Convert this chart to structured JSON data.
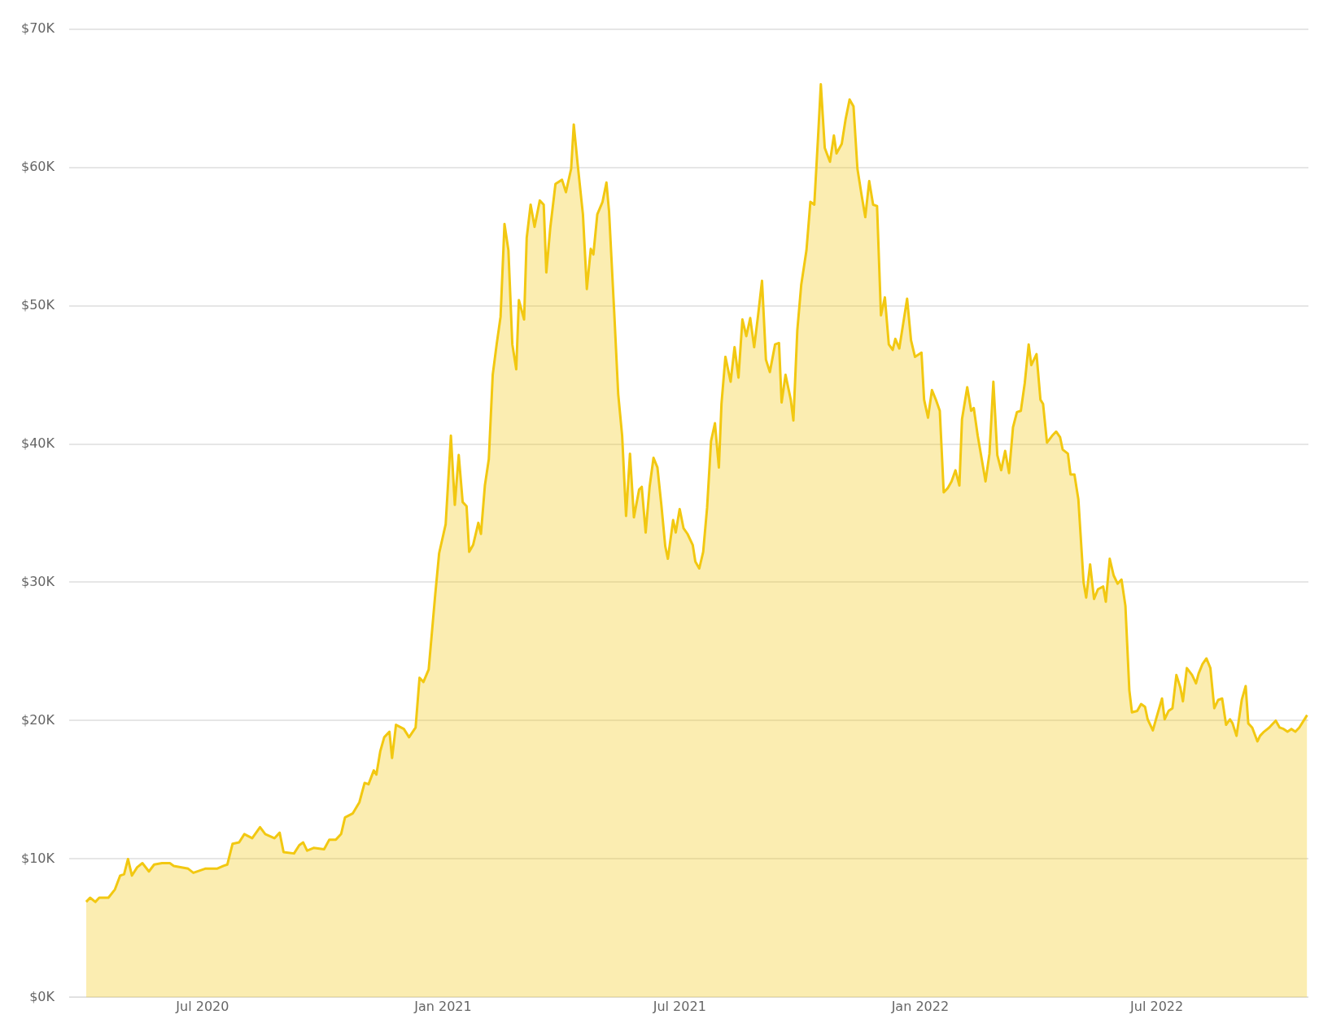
{
  "chart_data": {
    "type": "area",
    "x": [
      "2020-04-03",
      "2020-04-06",
      "2020-04-10",
      "2020-04-13",
      "2020-04-20",
      "2020-04-25",
      "2020-04-29",
      "2020-05-02",
      "2020-05-05",
      "2020-05-08",
      "2020-05-12",
      "2020-05-16",
      "2020-05-21",
      "2020-05-25",
      "2020-05-31",
      "2020-06-06",
      "2020-06-09",
      "2020-06-20",
      "2020-06-24",
      "2020-07-03",
      "2020-07-12",
      "2020-07-17",
      "2020-07-20",
      "2020-07-24",
      "2020-07-29",
      "2020-08-02",
      "2020-08-08",
      "2020-08-14",
      "2020-08-18",
      "2020-08-25",
      "2020-08-29",
      "2020-09-01",
      "2020-09-09",
      "2020-09-13",
      "2020-09-16",
      "2020-09-19",
      "2020-09-24",
      "2020-10-02",
      "2020-10-06",
      "2020-10-11",
      "2020-10-15",
      "2020-10-18",
      "2020-10-24",
      "2020-10-29",
      "2020-11-02",
      "2020-11-05",
      "2020-11-09",
      "2020-11-11",
      "2020-11-14",
      "2020-11-17",
      "2020-11-21",
      "2020-11-23",
      "2020-11-26",
      "2020-12-02",
      "2020-12-06",
      "2020-12-11",
      "2020-12-14",
      "2020-12-17",
      "2020-12-21",
      "2020-12-26",
      "2020-12-29",
      "2021-01-03",
      "2021-01-07",
      "2021-01-10",
      "2021-01-13",
      "2021-01-16",
      "2021-01-19",
      "2021-01-21",
      "2021-01-24",
      "2021-01-28",
      "2021-01-30",
      "2021-02-02",
      "2021-02-05",
      "2021-02-08",
      "2021-02-11",
      "2021-02-14",
      "2021-02-17",
      "2021-02-20",
      "2021-02-23",
      "2021-02-26",
      "2021-02-28",
      "2021-03-04",
      "2021-03-06",
      "2021-03-09",
      "2021-03-12",
      "2021-03-16",
      "2021-03-19",
      "2021-03-21",
      "2021-03-24",
      "2021-03-28",
      "2021-04-02",
      "2021-04-05",
      "2021-04-09",
      "2021-04-11",
      "2021-04-14",
      "2021-04-18",
      "2021-04-21",
      "2021-04-24",
      "2021-04-26",
      "2021-04-29",
      "2021-05-03",
      "2021-05-06",
      "2021-05-08",
      "2021-05-12",
      "2021-05-15",
      "2021-05-18",
      "2021-05-21",
      "2021-05-24",
      "2021-05-27",
      "2021-05-31",
      "2021-06-02",
      "2021-06-05",
      "2021-06-08",
      "2021-06-11",
      "2021-06-14",
      "2021-06-17",
      "2021-06-20",
      "2021-06-22",
      "2021-06-26",
      "2021-06-28",
      "2021-07-01",
      "2021-07-04",
      "2021-07-07",
      "2021-07-11",
      "2021-07-13",
      "2021-07-16",
      "2021-07-19",
      "2021-07-22",
      "2021-07-25",
      "2021-07-28",
      "2021-07-31",
      "2021-08-02",
      "2021-08-05",
      "2021-08-09",
      "2021-08-12",
      "2021-08-15",
      "2021-08-18",
      "2021-08-21",
      "2021-08-24",
      "2021-08-27",
      "2021-08-30",
      "2021-09-02",
      "2021-09-05",
      "2021-09-08",
      "2021-09-12",
      "2021-09-15",
      "2021-09-17",
      "2021-09-20",
      "2021-09-24",
      "2021-09-26",
      "2021-09-29",
      "2021-10-02",
      "2021-10-06",
      "2021-10-09",
      "2021-10-12",
      "2021-10-15",
      "2021-10-17",
      "2021-10-20",
      "2021-10-24",
      "2021-10-27",
      "2021-10-29",
      "2021-11-02",
      "2021-11-05",
      "2021-11-08",
      "2021-11-11",
      "2021-11-14",
      "2021-11-17",
      "2021-11-20",
      "2021-11-23",
      "2021-11-26",
      "2021-11-29",
      "2021-12-02",
      "2021-12-05",
      "2021-12-08",
      "2021-12-11",
      "2021-12-13",
      "2021-12-16",
      "2021-12-19",
      "2021-12-22",
      "2021-12-25",
      "2021-12-28",
      "2022-01-02",
      "2022-01-04",
      "2022-01-07",
      "2022-01-10",
      "2022-01-13",
      "2022-01-16",
      "2022-01-19",
      "2022-01-22",
      "2022-01-25",
      "2022-01-28",
      "2022-01-31",
      "2022-02-02",
      "2022-02-06",
      "2022-02-09",
      "2022-02-11",
      "2022-02-14",
      "2022-02-18",
      "2022-02-20",
      "2022-02-23",
      "2022-02-26",
      "2022-03-01",
      "2022-03-04",
      "2022-03-07",
      "2022-03-10",
      "2022-03-13",
      "2022-03-16",
      "2022-03-19",
      "2022-03-22",
      "2022-03-25",
      "2022-03-27",
      "2022-03-31",
      "2022-04-03",
      "2022-04-05",
      "2022-04-08",
      "2022-04-12",
      "2022-04-15",
      "2022-04-18",
      "2022-04-20",
      "2022-04-24",
      "2022-04-26",
      "2022-04-29",
      "2022-05-02",
      "2022-05-06",
      "2022-05-08",
      "2022-05-11",
      "2022-05-14",
      "2022-05-17",
      "2022-05-21",
      "2022-05-23",
      "2022-05-26",
      "2022-05-29",
      "2022-06-01",
      "2022-06-04",
      "2022-06-07",
      "2022-06-10",
      "2022-06-12",
      "2022-06-16",
      "2022-06-19",
      "2022-06-22",
      "2022-06-24",
      "2022-06-28",
      "2022-07-01",
      "2022-07-05",
      "2022-07-07",
      "2022-07-10",
      "2022-07-13",
      "2022-07-16",
      "2022-07-19",
      "2022-07-21",
      "2022-07-24",
      "2022-07-28",
      "2022-07-31",
      "2022-08-02",
      "2022-08-05",
      "2022-08-08",
      "2022-08-11",
      "2022-08-14",
      "2022-08-17",
      "2022-08-20",
      "2022-08-23",
      "2022-08-26",
      "2022-08-28",
      "2022-08-31",
      "2022-09-04",
      "2022-09-07",
      "2022-09-09",
      "2022-09-12",
      "2022-09-16",
      "2022-09-18",
      "2022-09-21",
      "2022-09-25",
      "2022-09-27",
      "2022-09-30",
      "2022-10-03",
      "2022-10-06",
      "2022-10-09",
      "2022-10-12",
      "2022-10-15",
      "2022-10-18",
      "2022-10-24"
    ],
    "series": [
      {
        "color": "#f2c811",
        "values": [
          6900,
          7200,
          6900,
          7200,
          7200,
          7800,
          8800,
          8900,
          10000,
          8800,
          9400,
          9700,
          9100,
          9600,
          9700,
          9700,
          9500,
          9300,
          9000,
          9300,
          9300,
          9500,
          9600,
          11100,
          11200,
          11800,
          11500,
          12300,
          11800,
          11500,
          11900,
          10500,
          10400,
          11000,
          11200,
          10600,
          10800,
          10700,
          11400,
          11400,
          11800,
          13000,
          13300,
          14100,
          15500,
          15400,
          16400,
          16100,
          17800,
          18800,
          19200,
          17300,
          19700,
          19400,
          18800,
          19500,
          23100,
          22800,
          23700,
          29100,
          32100,
          34200,
          40600,
          35600,
          39200,
          35800,
          35500,
          32200,
          32700,
          34300,
          33500,
          37000,
          38900,
          45000,
          47200,
          49200,
          55900,
          54000,
          47200,
          45400,
          50400,
          49000,
          54900,
          57300,
          55700,
          57600,
          57300,
          52400,
          55600,
          58800,
          59100,
          58200,
          59900,
          63100,
          60200,
          56600,
          51200,
          54100,
          53700,
          56600,
          57500,
          58900,
          56800,
          49400,
          43600,
          40600,
          34800,
          39300,
          34700,
          36700,
          36900,
          33600,
          36900,
          39000,
          38300,
          35600,
          32600,
          31700,
          34500,
          33600,
          35300,
          33900,
          33500,
          32700,
          31500,
          31000,
          32200,
          35400,
          40200,
          41500,
          38300,
          42900,
          46300,
          44500,
          47000,
          44800,
          49000,
          47800,
          49100,
          47000,
          49300,
          51800,
          46100,
          45200,
          47200,
          47300,
          43000,
          45000,
          43200,
          41700,
          48200,
          51500,
          54000,
          57500,
          57300,
          62400,
          66000,
          61400,
          60400,
          62300,
          61000,
          61700,
          63500,
          64900,
          64400,
          59900,
          58100,
          56400,
          59000,
          57300,
          57200,
          49300,
          50600,
          47200,
          46800,
          47600,
          46900,
          48700,
          50500,
          47500,
          46300,
          46600,
          43200,
          41900,
          43900,
          43200,
          42400,
          36500,
          36800,
          37300,
          38100,
          37000,
          41800,
          44100,
          42400,
          42600,
          40600,
          38400,
          37300,
          39300,
          44500,
          39200,
          38100,
          39500,
          37900,
          41200,
          42300,
          42400,
          44400,
          47200,
          45700,
          46500,
          43200,
          42900,
          40100,
          40600,
          40900,
          40500,
          39600,
          39300,
          37800,
          37800,
          36000,
          30000,
          28900,
          31300,
          28800,
          29500,
          29700,
          28600,
          31700,
          30500,
          29900,
          30200,
          28300,
          22200,
          20600,
          20700,
          21200,
          21000,
          20100,
          19300,
          20300,
          21600,
          20100,
          20700,
          20900,
          23300,
          22400,
          21400,
          23800,
          23300,
          22700,
          23400,
          24100,
          24500,
          23800,
          20900,
          21500,
          21600,
          19700,
          20100,
          19800,
          18900,
          21500,
          22500,
          19800,
          19500,
          18500,
          18900,
          19200,
          19500,
          19700,
          20000,
          19500,
          19400,
          19200,
          19400,
          19200,
          19500,
          20400
        ]
      }
    ],
    "xlim": [
      "2020-03-21",
      "2022-10-25"
    ],
    "xticks": [
      {
        "value": "2020-07-01",
        "label": "Jul 2020"
      },
      {
        "value": "2021-01-01",
        "label": "Jan 2021"
      },
      {
        "value": "2021-07-01",
        "label": "Jul 2021"
      },
      {
        "value": "2022-01-01",
        "label": "Jan 2022"
      },
      {
        "value": "2022-07-01",
        "label": "Jul 2022"
      }
    ],
    "ylim": [
      0,
      70000
    ],
    "yticks": [
      {
        "value": 0,
        "label": "$0K"
      },
      {
        "value": 10000,
        "label": "$10K"
      },
      {
        "value": 20000,
        "label": "$20K"
      },
      {
        "value": 30000,
        "label": "$30K"
      },
      {
        "value": 40000,
        "label": "$40K"
      },
      {
        "value": 50000,
        "label": "$50K"
      },
      {
        "value": 60000,
        "label": "$60K"
      },
      {
        "value": 70000,
        "label": "$70K"
      }
    ],
    "grid": "y",
    "legend": false
  }
}
